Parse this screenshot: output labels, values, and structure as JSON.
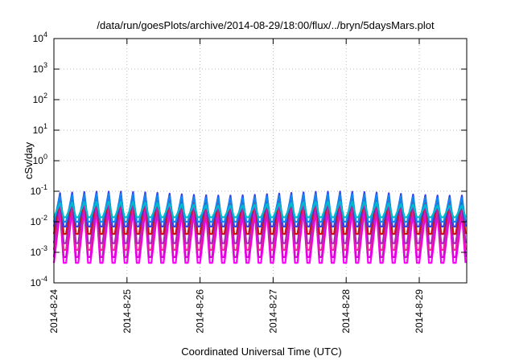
{
  "chart_data": {
    "type": "line",
    "title": "/data/run/goesPlots/archive/2014-08-29/18:00/flux/../bryn/5daysMars.plot",
    "xlabel": "Coordinated Universal Time (UTC)",
    "ylabel": "cSv/day",
    "y_scale": "log",
    "ylim": [
      0.0001,
      10000
    ],
    "y_ticks": [
      {
        "value": 0.0001,
        "base": "10",
        "exp": "-4"
      },
      {
        "value": 0.001,
        "base": "10",
        "exp": "-3"
      },
      {
        "value": 0.01,
        "base": "10",
        "exp": "-2"
      },
      {
        "value": 0.1,
        "base": "10",
        "exp": "-1"
      },
      {
        "value": 1,
        "base": "10",
        "exp": "0"
      },
      {
        "value": 10,
        "base": "10",
        "exp": "1"
      },
      {
        "value": 100,
        "base": "10",
        "exp": "2"
      },
      {
        "value": 1000,
        "base": "10",
        "exp": "3"
      },
      {
        "value": 10000,
        "base": "10",
        "exp": "4"
      }
    ],
    "x_range_days": [
      "2014-08-24",
      "2014-08-29 20:00"
    ],
    "x_ticks": [
      "2014-8-24",
      "2014-8-25",
      "2014-8-26",
      "2014-8-27",
      "2014-8-28",
      "2014-8-29"
    ],
    "grid": true,
    "legend": "none",
    "oscillation": {
      "cycles_per_day": 6,
      "peak_time": 0.5,
      "trough_time": 0.8
    },
    "series": [
      {
        "color": "#ff00ff",
        "peak": 0.022,
        "trough": 0.00045
      },
      {
        "color": "#dd00dd",
        "peak": 0.03,
        "trough": 0.0007
      },
      {
        "color": "#ee2299",
        "peak": 0.038,
        "trough": 0.0012
      },
      {
        "color": "#aa22bb",
        "peak": 0.05,
        "trough": 0.002
      },
      {
        "color": "#cc1111",
        "peak": 0.075,
        "trough": 0.004
      },
      {
        "color": "#3344ee",
        "peak": 0.085,
        "trough": 0.007
      },
      {
        "color": "#1188ee",
        "peak": 0.07,
        "trough": 0.01
      },
      {
        "color": "#00bbcc",
        "peak": 0.04,
        "trough": 0.014
      }
    ]
  }
}
